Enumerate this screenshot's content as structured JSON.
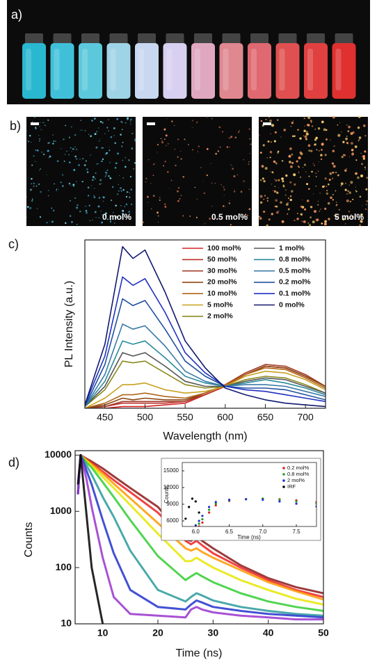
{
  "panels": {
    "a": {
      "label": "a)"
    },
    "b": {
      "label": "b)",
      "images": [
        "0 mol%",
        "0.5 mol%",
        "5 mol%"
      ]
    }
  },
  "chart_data": [
    {
      "type": "line",
      "label": "c)",
      "x_label": "Wavelength (nm)",
      "y_label": "PL Intensity (a.u.)",
      "x": [
        425,
        450,
        472,
        485,
        500,
        525,
        550,
        575,
        600,
        625,
        650,
        675,
        700,
        725
      ],
      "xlim": [
        425,
        725
      ],
      "xticks": [
        450,
        500,
        550,
        600,
        650,
        700
      ],
      "ylim": [
        0,
        1
      ],
      "series": [
        {
          "name": "100 mol%",
          "color": "#d42020",
          "values": [
            0,
            0,
            0.01,
            0.01,
            0.01,
            0.02,
            0.03,
            0.08,
            0.13,
            0.2,
            0.25,
            0.24,
            0.19,
            0.13
          ]
        },
        {
          "name": "50 mol%",
          "color": "#b83228",
          "values": [
            0,
            0.01,
            0.03,
            0.03,
            0.03,
            0.03,
            0.04,
            0.08,
            0.13,
            0.2,
            0.25,
            0.24,
            0.19,
            0.13
          ]
        },
        {
          "name": "30 mol%",
          "color": "#a03a28",
          "values": [
            0,
            0.01,
            0.04,
            0.04,
            0.04,
            0.04,
            0.04,
            0.09,
            0.14,
            0.21,
            0.26,
            0.25,
            0.2,
            0.13
          ]
        },
        {
          "name": "20 mol%",
          "color": "#8b4513",
          "values": [
            0,
            0.02,
            0.06,
            0.05,
            0.06,
            0.05,
            0.05,
            0.09,
            0.14,
            0.2,
            0.25,
            0.24,
            0.19,
            0.13
          ]
        },
        {
          "name": "10 mol%",
          "color": "#b0651a",
          "values": [
            0,
            0.03,
            0.08,
            0.08,
            0.09,
            0.07,
            0.06,
            0.09,
            0.14,
            0.2,
            0.24,
            0.23,
            0.18,
            0.12
          ]
        },
        {
          "name": "5 mol%",
          "color": "#c8a020",
          "values": [
            0,
            0.06,
            0.14,
            0.14,
            0.15,
            0.11,
            0.09,
            0.1,
            0.13,
            0.19,
            0.22,
            0.21,
            0.17,
            0.11
          ]
        },
        {
          "name": "2 mol%",
          "color": "#8a8a20",
          "values": [
            0.01,
            0.11,
            0.28,
            0.27,
            0.28,
            0.21,
            0.14,
            0.12,
            0.13,
            0.17,
            0.19,
            0.18,
            0.14,
            0.09
          ]
        },
        {
          "name": "1 mol%",
          "color": "#555555",
          "values": [
            0.01,
            0.13,
            0.33,
            0.31,
            0.33,
            0.25,
            0.16,
            0.13,
            0.13,
            0.16,
            0.18,
            0.17,
            0.13,
            0.09
          ]
        },
        {
          "name": "0.8 mol%",
          "color": "#2a8a9a",
          "values": [
            0.01,
            0.16,
            0.4,
            0.38,
            0.4,
            0.3,
            0.19,
            0.15,
            0.13,
            0.15,
            0.17,
            0.15,
            0.12,
            0.08
          ]
        },
        {
          "name": "0.5 mol%",
          "color": "#3a7aa8",
          "values": [
            0.01,
            0.2,
            0.5,
            0.47,
            0.49,
            0.37,
            0.22,
            0.16,
            0.13,
            0.14,
            0.14,
            0.13,
            0.1,
            0.07
          ]
        },
        {
          "name": "0.2 mol%",
          "color": "#2050a0",
          "values": [
            0.01,
            0.26,
            0.65,
            0.61,
            0.64,
            0.47,
            0.28,
            0.19,
            0.13,
            0.12,
            0.12,
            0.11,
            0.08,
            0.05
          ]
        },
        {
          "name": "0.1 mol%",
          "color": "#2030c0",
          "values": [
            0.02,
            0.31,
            0.78,
            0.73,
            0.77,
            0.57,
            0.33,
            0.21,
            0.13,
            0.11,
            0.1,
            0.08,
            0.06,
            0.04
          ]
        },
        {
          "name": "0 mol%",
          "color": "#101870",
          "values": [
            0.02,
            0.38,
            0.96,
            0.89,
            0.94,
            0.69,
            0.4,
            0.24,
            0.12,
            0.08,
            0.05,
            0.03,
            0.02,
            0.01
          ]
        }
      ]
    },
    {
      "type": "line",
      "label": "d)",
      "x_label": "Time (ns)",
      "y_label": "Counts",
      "ylog": true,
      "x": [
        5.5,
        6,
        7,
        8,
        10,
        12,
        15,
        20,
        25,
        26,
        27,
        28,
        30,
        35,
        40,
        45,
        50
      ],
      "xlim": [
        5,
        50
      ],
      "xticks": [
        10,
        20,
        30,
        40,
        50
      ],
      "ylim": [
        10,
        12000
      ],
      "yticks": [
        10,
        100,
        1000,
        10000
      ],
      "series": [
        {
          "color": "#8b1a1a",
          "values": [
            2000,
            10000,
            8700,
            7700,
            5800,
            4200,
            2600,
            1200,
            320,
            300,
            360,
            300,
            220,
            110,
            65,
            45,
            35
          ]
        },
        {
          "color": "#ee2222",
          "values": [
            2000,
            10000,
            8500,
            7200,
            5100,
            3600,
            2200,
            950,
            300,
            260,
            300,
            250,
            180,
            100,
            60,
            40,
            30
          ]
        },
        {
          "color": "#ff9900",
          "values": [
            2000,
            10000,
            8200,
            6800,
            4700,
            3100,
            1700,
            620,
            220,
            200,
            220,
            190,
            150,
            90,
            55,
            38,
            27
          ]
        },
        {
          "color": "#e6e600",
          "values": [
            2000,
            10000,
            8000,
            6500,
            4100,
            2600,
            1300,
            400,
            130,
            130,
            150,
            130,
            100,
            60,
            40,
            28,
            22
          ]
        },
        {
          "color": "#33cc33",
          "values": [
            2000,
            10000,
            7500,
            6000,
            3300,
            1800,
            700,
            160,
            60,
            70,
            80,
            70,
            55,
            35,
            25,
            20,
            17
          ]
        },
        {
          "color": "#2a9a9a",
          "values": [
            2000,
            10000,
            6700,
            4500,
            1800,
            800,
            200,
            40,
            25,
            30,
            35,
            32,
            26,
            20,
            17,
            15,
            14
          ]
        },
        {
          "color": "#2233cc",
          "values": [
            2000,
            10000,
            5500,
            3000,
            700,
            180,
            40,
            20,
            18,
            22,
            26,
            24,
            20,
            17,
            15,
            14,
            13
          ]
        },
        {
          "color": "#9933cc",
          "values": [
            2000,
            10000,
            4000,
            1200,
            150,
            30,
            15,
            14,
            13,
            18,
            20,
            18,
            16,
            14,
            13,
            12,
            12
          ]
        },
        {
          "color": "#000000",
          "values": [
            3000,
            10000,
            1000,
            100,
            10,
            null,
            null,
            null,
            null,
            null,
            null,
            null,
            null,
            null,
            null,
            null,
            null
          ]
        }
      ]
    },
    {
      "type": "scatter",
      "x_label": "Time (ns)",
      "y_label": "Counts",
      "x": [
        5.85,
        5.9,
        5.95,
        6.0,
        6.05,
        6.1,
        6.2,
        6.3,
        6.5,
        6.75,
        7.0,
        7.25,
        7.5,
        7.8
      ],
      "xlim": [
        5.8,
        7.8
      ],
      "xticks": [
        {
          "value": 6,
          "label": "6.0"
        },
        6.5,
        {
          "value": 7,
          "label": "7.0"
        },
        7.5
      ],
      "ylim": [
        5000,
        16500
      ],
      "yticks": [
        6000,
        9000,
        12000,
        15000
      ],
      "series": [
        {
          "name": "0.2 mol%",
          "color": "#e02020",
          "values": [
            null,
            null,
            null,
            null,
            5000,
            5700,
            7500,
            8800,
            9600,
            9900,
            10000,
            9900,
            9700,
            9400
          ]
        },
        {
          "name": "0.8 mol%",
          "color": "#20a020",
          "values": [
            null,
            null,
            null,
            null,
            5500,
            6300,
            8000,
            9100,
            9700,
            9900,
            10000,
            9800,
            9500,
            9100
          ]
        },
        {
          "name": "2 mol%",
          "color": "#2030d0",
          "values": [
            null,
            null,
            null,
            5200,
            6000,
            6900,
            8500,
            9400,
            9800,
            9900,
            9800,
            9500,
            9100,
            8600
          ]
        },
        {
          "name": "IRF",
          "color": "#000000",
          "values": [
            6400,
            8500,
            10000,
            9500,
            7500,
            null,
            null,
            null,
            null,
            null,
            null,
            null,
            null,
            null
          ]
        }
      ]
    }
  ]
}
